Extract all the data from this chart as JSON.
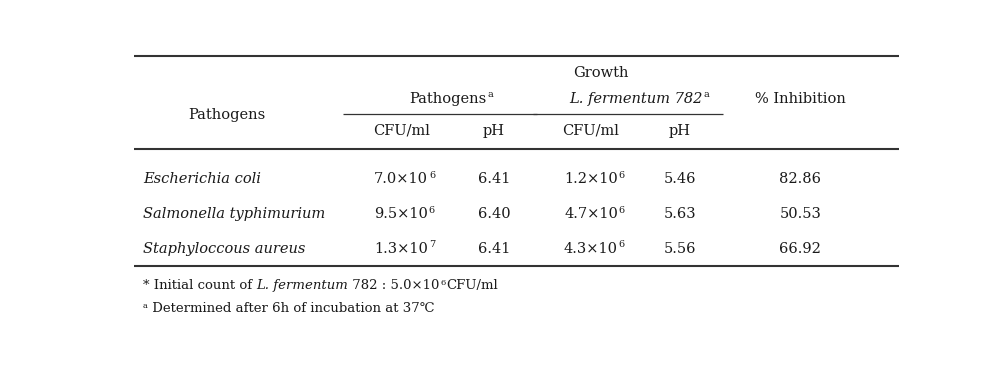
{
  "title": "Growth",
  "col_pathogens_label": "Pathogens",
  "col_group1_label": "Pathogens",
  "col_group1_super": "a",
  "col_group2_label": "L. fermentum 782",
  "col_group2_super": "a",
  "col_inhibition_label": "% Inhibition",
  "sub_headers": [
    "CFU/ml",
    "pH",
    "CFU/ml",
    "pH"
  ],
  "rows": [
    {
      "pathogen": "Escherichia coli",
      "p_cfu": "7.0×10",
      "p_cfu_exp": "6",
      "p_ph": "6.41",
      "l_cfu": "1.2×10",
      "l_cfu_exp": "6",
      "l_ph": "5.46",
      "inhibition": "82.86"
    },
    {
      "pathogen": "Salmonella typhimurium",
      "p_cfu": "9.5×10",
      "p_cfu_exp": "6",
      "p_ph": "6.40",
      "l_cfu": "4.7×10",
      "l_cfu_exp": "6",
      "l_ph": "5.63",
      "inhibition": "50.53"
    },
    {
      "pathogen": "Staphyloccous aureus",
      "p_cfu": "1.3×10",
      "p_cfu_exp": "7",
      "p_ph": "6.41",
      "l_cfu": "4.3×10",
      "l_cfu_exp": "6",
      "l_ph": "5.56",
      "inhibition": "66.92"
    }
  ],
  "fn1_pre": "* Initial count of ",
  "fn1_italic": "L. fermentum",
  "fn1_post": " 782 : 5.0×10",
  "fn1_exp": "6",
  "fn1_end": "CFU/ml",
  "fn2_super": "a",
  "fn2_text": " Determined after 6h of incubation at 37℃",
  "bg_color": "#ffffff",
  "text_color": "#1a1a1a",
  "line_color": "#333333",
  "font_size": 10.5,
  "small_font_size": 7,
  "footnote_font_size": 9.5
}
